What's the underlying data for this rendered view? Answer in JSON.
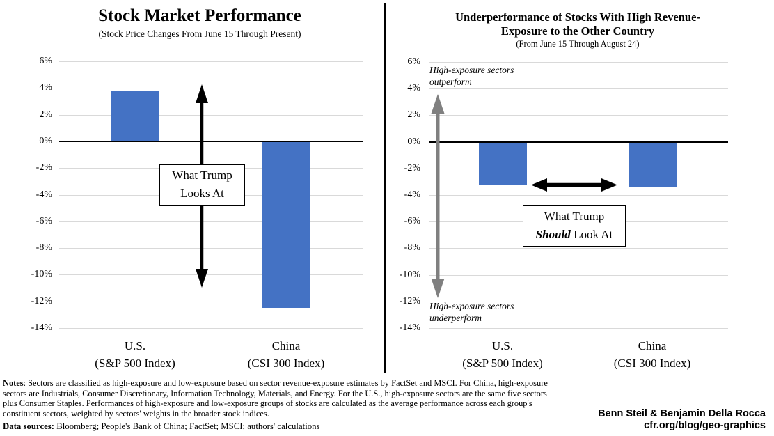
{
  "colors": {
    "bar": "#4472C4",
    "gridline": "#D9D9D9",
    "zero_axis": "#000000",
    "arrow_black": "#000000",
    "arrow_gray": "#808080"
  },
  "chart_data": [
    {
      "type": "bar",
      "title": "Stock Market Performance",
      "subtitle": "(Stock Price Changes From June 15 Through Present)",
      "categories": [
        "U.S.",
        "China"
      ],
      "category_sublabels": [
        "(S&P 500 Index)",
        "(CSI 300 Index)"
      ],
      "values": [
        3.8,
        -12.5
      ],
      "unit": "percent",
      "ylim": [
        -14,
        6
      ],
      "ytick_step": 2,
      "ytick_labels": [
        "6%",
        "4%",
        "2%",
        "0%",
        "-2%",
        "-4%",
        "-6%",
        "-8%",
        "-10%",
        "-12%",
        "-14%"
      ],
      "grid": "horizontal",
      "legend": "none",
      "annotation_callout": {
        "line1": "What Trump",
        "line2": "Looks At"
      }
    },
    {
      "type": "bar",
      "title": "Underperformance of Stocks With High Revenue-Exposure to the Other Country",
      "title_lines": [
        "Underperformance of Stocks With High Revenue-",
        "Exposure to the Other Country"
      ],
      "subtitle": "(From June 15 Through August 24)",
      "categories": [
        "U.S.",
        "China"
      ],
      "category_sublabels": [
        "(S&P 500 Index)",
        "(CSI 300 Index)"
      ],
      "values": [
        -3.2,
        -3.4
      ],
      "unit": "percent",
      "ylim": [
        -14,
        6
      ],
      "ytick_step": 2,
      "ytick_labels": [
        "6%",
        "4%",
        "2%",
        "0%",
        "-2%",
        "-4%",
        "-6%",
        "-8%",
        "-10%",
        "-12%",
        "-14%"
      ],
      "grid": "horizontal",
      "legend": "none",
      "annotation_top": {
        "line1": "High-exposure sectors",
        "line2": "outperform"
      },
      "annotation_bottom": {
        "line1": "High-exposure sectors",
        "line2": "underperform"
      },
      "annotation_callout": {
        "line1": "What Trump",
        "line2_emphasis": "Should",
        "line2_rest": " Look At"
      }
    }
  ],
  "footer": {
    "notes_label": "Notes",
    "notes_text": ": Sectors are classified as high-exposure and low-exposure based on sector revenue-exposure estimates by FactSet and MSCI. For China, high-exposure sectors are Industrials, Consumer Discretionary, Information Technology, Materials, and Energy. For the U.S., high-exposure sectors are the same five sectors plus Consumer Staples. Performances of high-exposure and low-exposure groups of stocks are calculated as the average performance across each group's constituent sectors, weighted by sectors' weights in the broader stock indices.",
    "datasources_label": "Data sources:",
    "datasources_text": " Bloomberg; People's Bank of China; FactSet; MSCI; authors' calculations",
    "credit_line1": "Benn Steil & Benjamin Della Rocca",
    "credit_line2": "cfr.org/blog/geo-graphics"
  }
}
